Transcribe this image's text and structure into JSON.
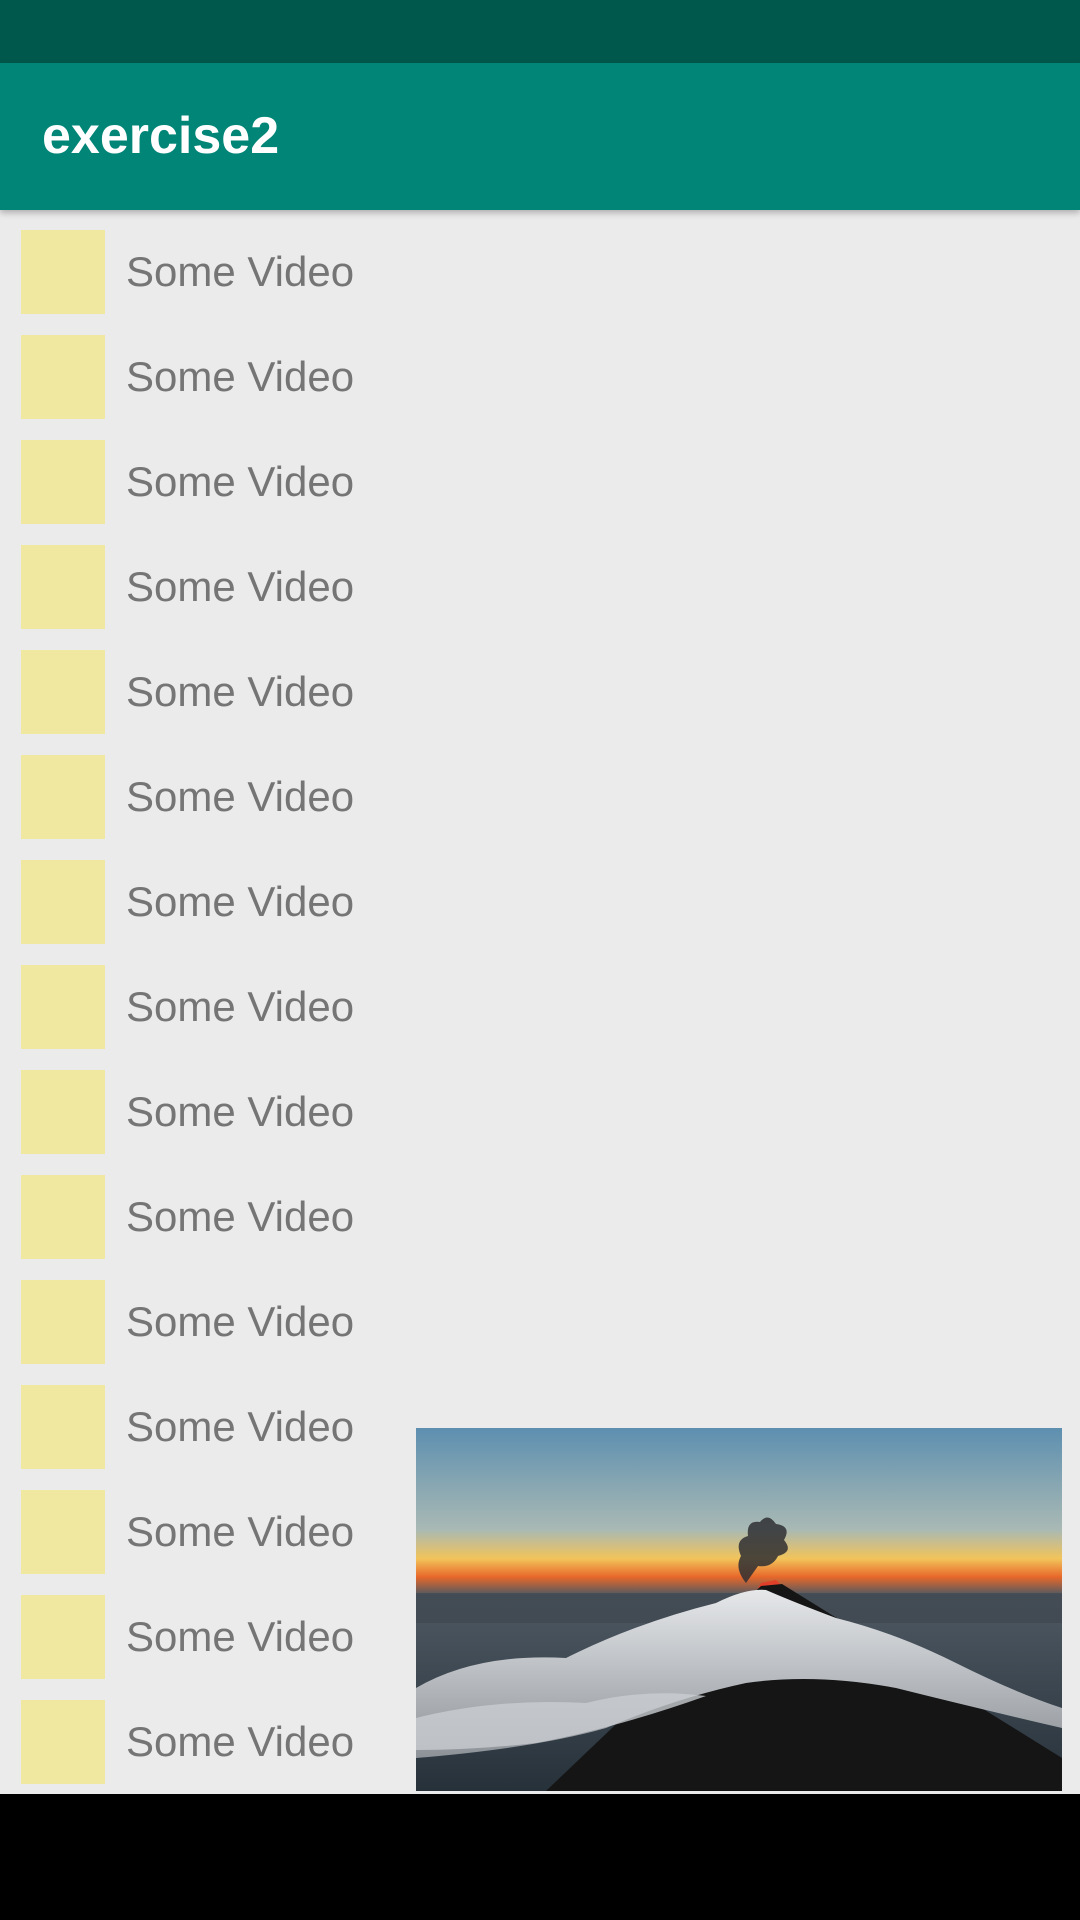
{
  "app_bar": {
    "title": "exercise2"
  },
  "video_list": {
    "items": [
      {
        "label": "Some Video"
      },
      {
        "label": "Some Video"
      },
      {
        "label": "Some Video"
      },
      {
        "label": "Some Video"
      },
      {
        "label": "Some Video"
      },
      {
        "label": "Some Video"
      },
      {
        "label": "Some Video"
      },
      {
        "label": "Some Video"
      },
      {
        "label": "Some Video"
      },
      {
        "label": "Some Video"
      },
      {
        "label": "Some Video"
      },
      {
        "label": "Some Video"
      },
      {
        "label": "Some Video"
      },
      {
        "label": "Some Video"
      },
      {
        "label": "Some Video"
      }
    ]
  },
  "colors": {
    "status_bar": "#00574b",
    "app_bar": "#008577",
    "thumbnail": "#f0e8a0",
    "list_background": "#ebebeb",
    "label_text": "#757575"
  }
}
